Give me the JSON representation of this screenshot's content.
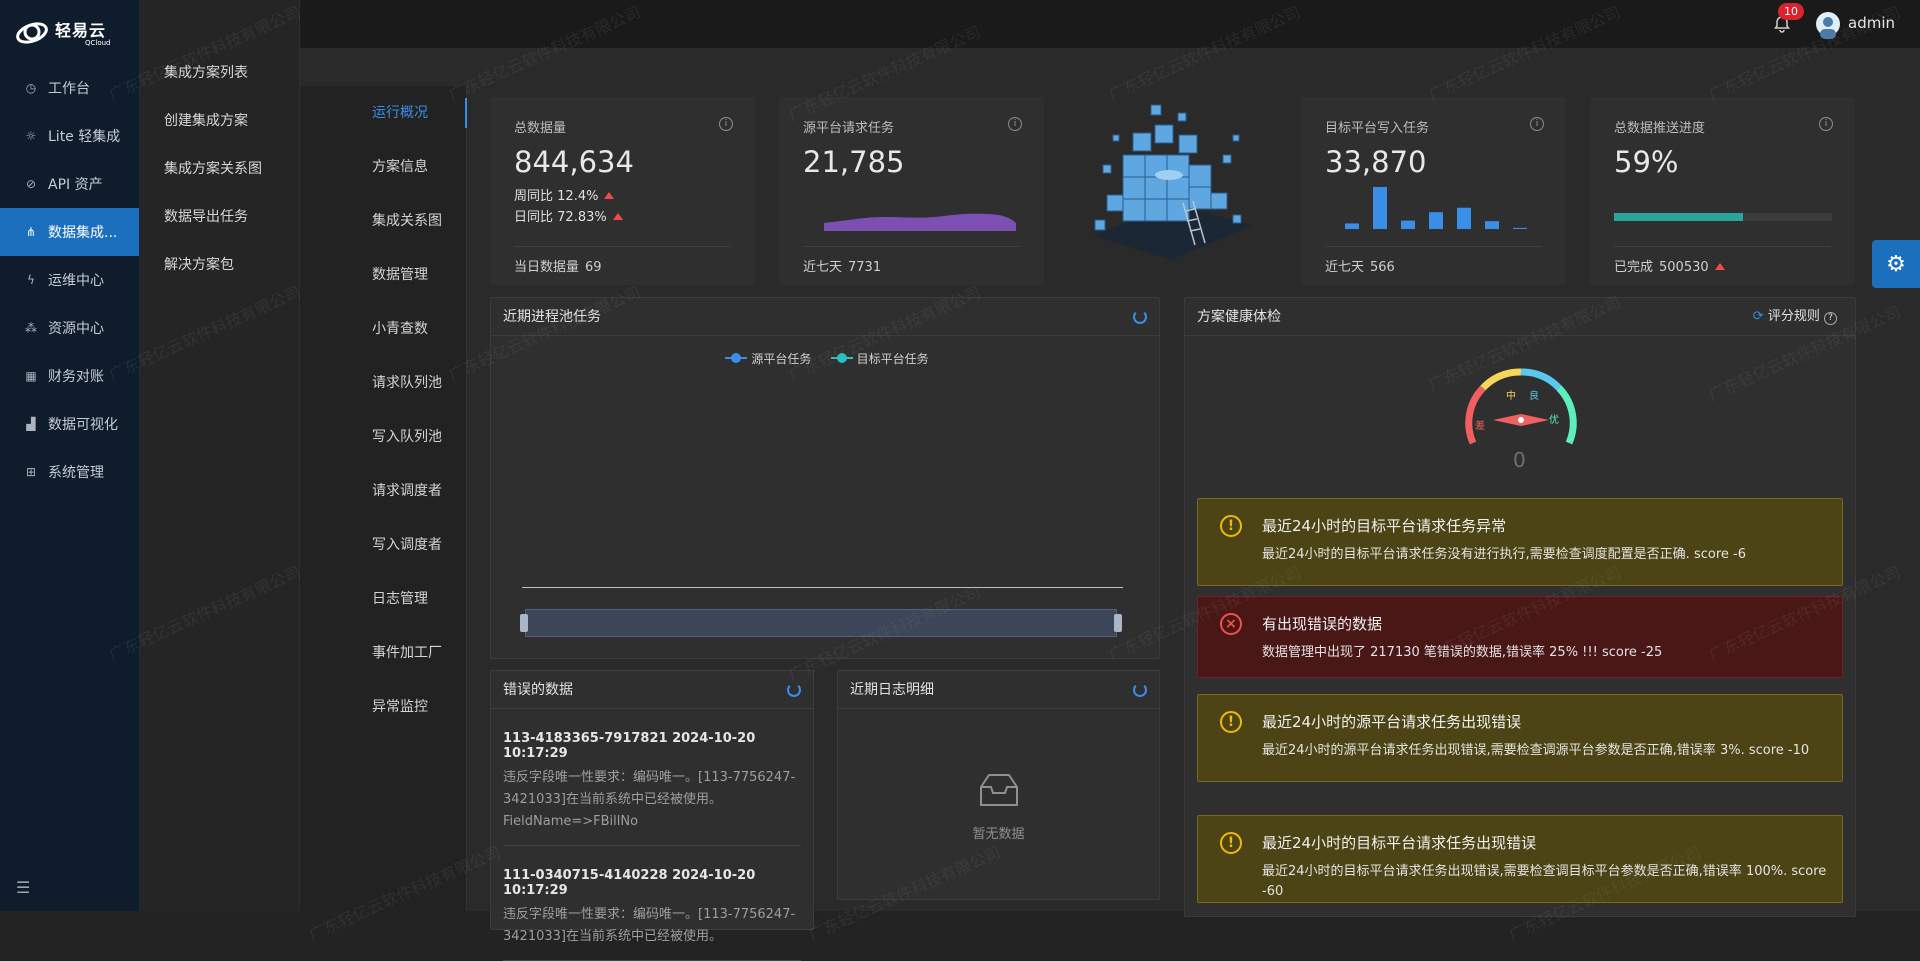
{
  "brand": {
    "name_cn": "轻易云",
    "name_en": "QCloud"
  },
  "nav": [
    {
      "label": "工作台",
      "icon": "clock-icon",
      "glyph": "◷"
    },
    {
      "label": "Lite 轻集成",
      "icon": "lightbulb-icon",
      "glyph": "☼"
    },
    {
      "label": "API 资产",
      "icon": "compass-icon",
      "glyph": "⊘"
    },
    {
      "label": "数据集成...",
      "icon": "share-icon",
      "glyph": "⋔",
      "active": true
    },
    {
      "label": "运维中心",
      "icon": "bolt-icon",
      "glyph": "ϟ"
    },
    {
      "label": "资源中心",
      "icon": "nodes-icon",
      "glyph": "⁂"
    },
    {
      "label": "财务对账",
      "icon": "calculator-icon",
      "glyph": "▦"
    },
    {
      "label": "数据可视化",
      "icon": "chart-icon",
      "glyph": "▟"
    },
    {
      "label": "系统管理",
      "icon": "grid-icon",
      "glyph": "⊞"
    }
  ],
  "submenu": [
    "集成方案列表",
    "创建集成方案",
    "集成方案关系图",
    "数据导出任务",
    "解决方案包"
  ],
  "header": {
    "notifications": "10",
    "username": "admin"
  },
  "tabs": [
    "运行概况",
    "方案信息",
    "集成关系图",
    "数据管理",
    "小青查数",
    "请求队列池",
    "写入队列池",
    "请求调度者",
    "写入调度者",
    "日志管理",
    "事件加工厂",
    "异常监控"
  ],
  "stats": {
    "total": {
      "label": "总数据量",
      "value": "844,634",
      "week_label": "周同比",
      "week_value": "12.4%",
      "day_label": "日同比",
      "day_value": "72.83%",
      "foot_label": "当日数据量",
      "foot_value": "69"
    },
    "source": {
      "label": "源平台请求任务",
      "value": "21,785",
      "foot_label": "近七天",
      "foot_value": "7731"
    },
    "target": {
      "label": "目标平台写入任务",
      "value": "33,870",
      "foot_label": "近七天",
      "foot_value": "566",
      "bars": [
        10,
        75,
        15,
        30,
        38,
        14,
        2
      ]
    },
    "progress": {
      "label": "总数据推送进度",
      "value": "59%",
      "percent": 59,
      "foot_label": "已完成",
      "foot_value": "500530"
    }
  },
  "pool_panel": {
    "title": "近期进程池任务",
    "legend": [
      "源平台任务",
      "目标平台任务"
    ],
    "colors": [
      "#3a8ee6",
      "#2bbfc0"
    ]
  },
  "health_panel": {
    "title": "方案健康体检",
    "rule_label": "评分规则",
    "score": "0",
    "gauge_labels": [
      "差",
      "中",
      "良",
      "优"
    ]
  },
  "alerts": [
    {
      "type": "warn",
      "title": "最近24小时的目标平台请求任务异常",
      "desc": "最近24小时的目标平台请求任务没有进行执行,需要检查调度配置是否正确. score -6"
    },
    {
      "type": "err",
      "title": "有出现错误的数据",
      "desc": "数据管理中出现了 217130 笔错误的数据,错误率 25% !!! score -25"
    },
    {
      "type": "warn",
      "title": "最近24小时的源平台请求任务出现错误",
      "desc": "最近24小时的源平台请求任务出现错误,需要检查调源平台参数是否正确,错误率 3%. score -10"
    },
    {
      "type": "warn",
      "title": "最近24小时的目标平台请求任务出现错误",
      "desc": "最近24小时的目标平台请求任务出现错误,需要检查调目标平台参数是否正确,错误率 100%. score -60"
    }
  ],
  "error_panel": {
    "title": "错误的数据",
    "items": [
      {
        "title": "113-4183365-7917821 2024-10-20 10:17:29",
        "desc": "违反字段唯一性要求：编码唯一。[113-7756247-3421033]在当前系统中已经被使用。FieldName=>FBillNo"
      },
      {
        "title": "111-0340715-4140228 2024-10-20 10:17:29",
        "desc": "违反字段唯一性要求：编码唯一。[113-7756247-3421033]在当前系统中已经被使用。"
      }
    ]
  },
  "log_panel": {
    "title": "近期日志明细",
    "empty": "暂无数据"
  },
  "watermark": "广东轻亿云软件科技有限公司"
}
